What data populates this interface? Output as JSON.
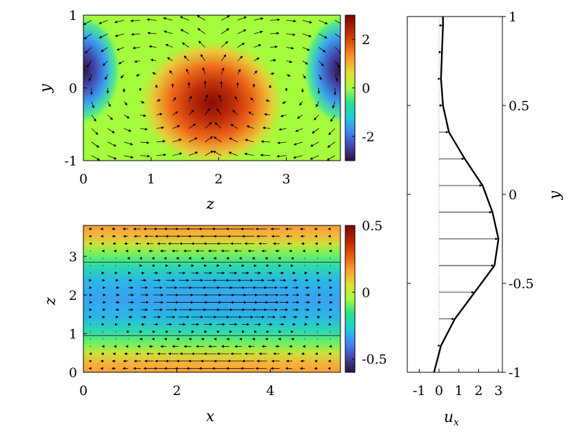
{
  "chart_data": [
    {
      "type": "heatmap",
      "panel": "cross-section",
      "xlabel": "z",
      "ylabel": "y",
      "xlim": [
        0,
        3.8
      ],
      "ylim": [
        -1,
        1
      ],
      "xticks": [
        "0",
        "1",
        "2",
        "3"
      ],
      "yticks": [
        "-1",
        "0",
        "1"
      ],
      "colorbar": {
        "range": [
          -3,
          3
        ],
        "ticks": [
          "2",
          "0",
          "-2"
        ]
      },
      "field": {
        "background": 0.6,
        "blobs": [
          {
            "z": 1.9,
            "y": -0.2,
            "amplitude": 3.0
          },
          {
            "z": 0.0,
            "y": 0.25,
            "amplitude": -3.0
          },
          {
            "z": 3.8,
            "y": 0.25,
            "amplitude": -3.0
          }
        ]
      },
      "vectors": "in-plane (w, v) velocity arrows, two counter-rotating cells"
    },
    {
      "type": "heatmap",
      "panel": "plan-view",
      "xlabel": "x",
      "ylabel": "z",
      "xlim": [
        0,
        5.5
      ],
      "ylim": [
        0,
        3.8
      ],
      "xticks": [
        "0",
        "2",
        "4"
      ],
      "yticks": [
        "0",
        "1",
        "2",
        "3"
      ],
      "colorbar": {
        "range": [
          -0.6,
          0.5
        ],
        "ticks": [
          "0.5",
          "0",
          "-0.5"
        ]
      },
      "contour_lines_z": [
        0.95,
        2.85
      ],
      "vectors": "streamwise arrows: +x near z≈1.9, -x near z≈0.3 and z≈3.4"
    },
    {
      "type": "line",
      "panel": "velocity-profile",
      "xlabel": "u",
      "xlabel_subscript": "x",
      "ylabel": "y",
      "xlim": [
        -1.6,
        3.2
      ],
      "ylim": [
        -1,
        1
      ],
      "xticks": [
        "-1",
        "0",
        "1",
        "2",
        "3"
      ],
      "yticks": [
        "-1",
        "-0.5",
        "0",
        "0.5",
        "1"
      ],
      "y": [
        -1.0,
        -0.85,
        -0.7,
        -0.55,
        -0.4,
        -0.25,
        -0.1,
        0.05,
        0.2,
        0.35,
        0.5,
        0.65,
        0.8,
        0.95,
        1.0
      ],
      "ux": [
        -0.25,
        0.1,
        0.8,
        1.8,
        2.8,
        3.0,
        2.7,
        2.2,
        1.3,
        0.5,
        0.2,
        0.1,
        0.15,
        0.2,
        0.2
      ]
    }
  ]
}
